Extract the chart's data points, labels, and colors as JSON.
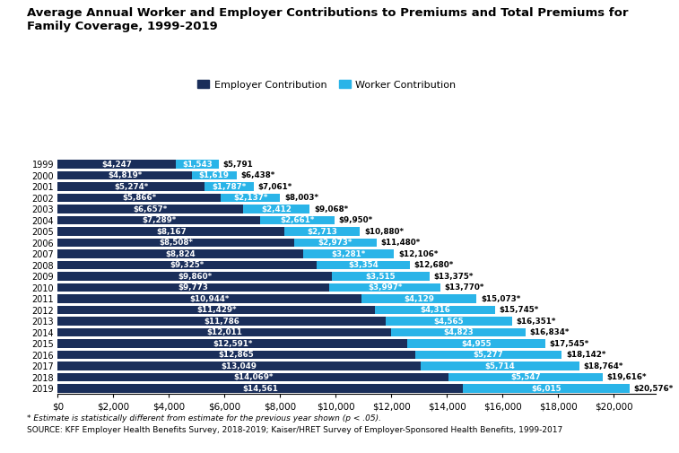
{
  "years": [
    "1999",
    "2000",
    "2001",
    "2002",
    "2003",
    "2004",
    "2005",
    "2006",
    "2007",
    "2008",
    "2009",
    "2010",
    "2011",
    "2012",
    "2013",
    "2014",
    "2015",
    "2016",
    "2017",
    "2018",
    "2019"
  ],
  "employer": [
    4247,
    4819,
    5274,
    5866,
    6657,
    7289,
    8167,
    8508,
    8824,
    9325,
    9860,
    9773,
    10944,
    11429,
    11786,
    12011,
    12591,
    12865,
    13049,
    14069,
    14561
  ],
  "worker": [
    1543,
    1619,
    1787,
    2137,
    2412,
    2661,
    2713,
    2973,
    3281,
    3354,
    3515,
    3997,
    4129,
    4316,
    4565,
    4823,
    4955,
    5277,
    5714,
    5547,
    6015
  ],
  "total": [
    5791,
    6438,
    7061,
    8003,
    9068,
    9950,
    10880,
    11480,
    12106,
    12680,
    13375,
    13770,
    15073,
    15745,
    16351,
    16834,
    17545,
    18142,
    18764,
    19616,
    20576
  ],
  "employer_star": [
    false,
    true,
    true,
    true,
    true,
    true,
    false,
    true,
    false,
    true,
    true,
    false,
    true,
    true,
    false,
    false,
    true,
    false,
    false,
    true,
    false
  ],
  "worker_star": [
    false,
    false,
    true,
    true,
    false,
    true,
    false,
    true,
    true,
    false,
    false,
    true,
    false,
    false,
    false,
    false,
    false,
    false,
    false,
    false,
    false
  ],
  "total_star": [
    false,
    true,
    true,
    true,
    true,
    true,
    true,
    true,
    true,
    true,
    true,
    true,
    true,
    true,
    true,
    true,
    true,
    true,
    true,
    true,
    true
  ],
  "employer_color": "#1a2e5a",
  "worker_color": "#2ab4e8",
  "title_line1": "Average Annual Worker and Employer Contributions to Premiums and Total Premiums for",
  "title_line2": "Family Coverage, 1999-2019",
  "legend_employer": "Employer Contribution",
  "legend_worker": "Worker Contribution",
  "footnote1": "* Estimate is statistically different from estimate for the previous year shown (p < .05).",
  "footnote2": "SOURCE: KFF Employer Health Benefits Survey, 2018-2019; Kaiser/HRET Survey of Employer-Sponsored Health Benefits, 1999-2017",
  "xlim_max": 21500,
  "xticks": [
    0,
    2000,
    4000,
    6000,
    8000,
    10000,
    12000,
    14000,
    16000,
    18000,
    20000
  ],
  "xtick_labels": [
    "$0",
    "$2,000",
    "$4,000",
    "$6,000",
    "$8,000",
    "$10,000",
    "$12,000",
    "$14,000",
    "$16,000",
    "$18,000",
    "$20,000"
  ],
  "bar_height": 0.75,
  "fontsize_bar": 6.3,
  "fontsize_ytick": 7.0,
  "fontsize_xtick": 7.5,
  "fontsize_title": 9.5,
  "fontsize_legend": 8.0,
  "fontsize_footnote": 6.5
}
